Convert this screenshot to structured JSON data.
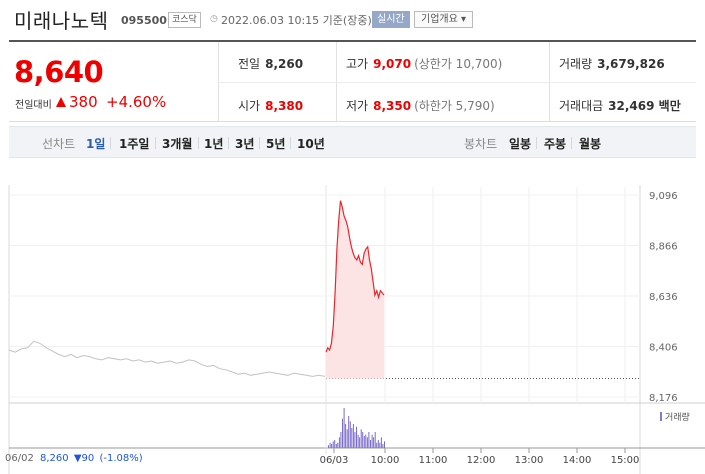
{
  "header": {
    "stock_name": "미래나노텍",
    "stock_code": "095500",
    "market": "코스닥",
    "datetime": "2022.06.03 10:15 기준(장중)",
    "live_label": "실시간",
    "corp_info_label": "기업개요 ▾",
    "clock_icon": "clock-icon"
  },
  "price": {
    "current": "8,640",
    "prev_compare_label": "전일대비",
    "change": "380",
    "change_rate": "+4.60%",
    "direction": "up",
    "up_color": "#e00000"
  },
  "stats": {
    "prev_close_label": "전일",
    "prev_close": "8,260",
    "high_label": "고가",
    "high": "9,070",
    "upper_limit": "(상한가 10,700)",
    "volume_label": "거래량",
    "volume": "3,679,826",
    "open_label": "시가",
    "open": "8,380",
    "low_label": "저가",
    "low": "8,350",
    "lower_limit": "(하한가 5,790)",
    "amount_label": "거래대금",
    "amount": "32,469 백만"
  },
  "tabs": {
    "line_chart_label": "선차트",
    "periods": [
      "1일",
      "1주일",
      "3개월",
      "1년",
      "3년",
      "5년",
      "10년"
    ],
    "active_period": "1일",
    "candle_chart_label": "봉차트",
    "candle_periods": [
      "일봉",
      "주봉",
      "월봉"
    ]
  },
  "chart_data": {
    "type": "line",
    "title": "",
    "y_ticks": [
      "9,096",
      "8,866",
      "8,636",
      "8,406",
      "8,176"
    ],
    "ylim": [
      8176,
      9096
    ],
    "x_ticks": [
      "06/03",
      "10:00",
      "11:00",
      "12:00",
      "13:00",
      "14:00",
      "15:00"
    ],
    "baseline_prev_close": 8260,
    "legend_volume": "거래량",
    "prev_day_series": {
      "name": "06/02",
      "values": [
        8390,
        8380,
        8395,
        8400,
        8430,
        8420,
        8400,
        8385,
        8370,
        8360,
        8370,
        8355,
        8365,
        8360,
        8350,
        8345,
        8355,
        8350,
        8345,
        8350,
        8340,
        8345,
        8335,
        8340,
        8330,
        8335,
        8340,
        8330,
        8335,
        8345,
        8340,
        8325,
        8315,
        8320,
        8305,
        8300,
        8290,
        8280,
        8285,
        8275,
        8280,
        8285,
        8290,
        8285,
        8280,
        8275,
        8285,
        8280,
        8275,
        8270,
        8275,
        8270
      ]
    },
    "today_series": {
      "name": "06/03",
      "values": [
        8380,
        8400,
        8390,
        8420,
        8500,
        8650,
        8850,
        8980,
        9070,
        9040,
        9000,
        8980,
        8950,
        8900,
        8860,
        8830,
        8810,
        8800,
        8820,
        8790,
        8780,
        8830,
        8850,
        8860,
        8800,
        8760,
        8700,
        8640,
        8660,
        8630,
        8660,
        8650,
        8640
      ]
    },
    "today_volume": [
      2,
      4,
      3,
      5,
      6,
      3,
      4,
      8,
      12,
      22,
      30,
      18,
      14,
      24,
      20,
      15,
      18,
      12,
      16,
      10,
      8,
      14,
      12,
      9,
      10,
      8,
      12,
      6,
      10,
      8,
      12,
      4,
      6,
      4,
      8,
      3,
      5
    ]
  },
  "footer": {
    "prev_date": "06/02",
    "prev_price": "8,260",
    "prev_change": "▼90",
    "prev_rate": "(-1.08%)"
  }
}
